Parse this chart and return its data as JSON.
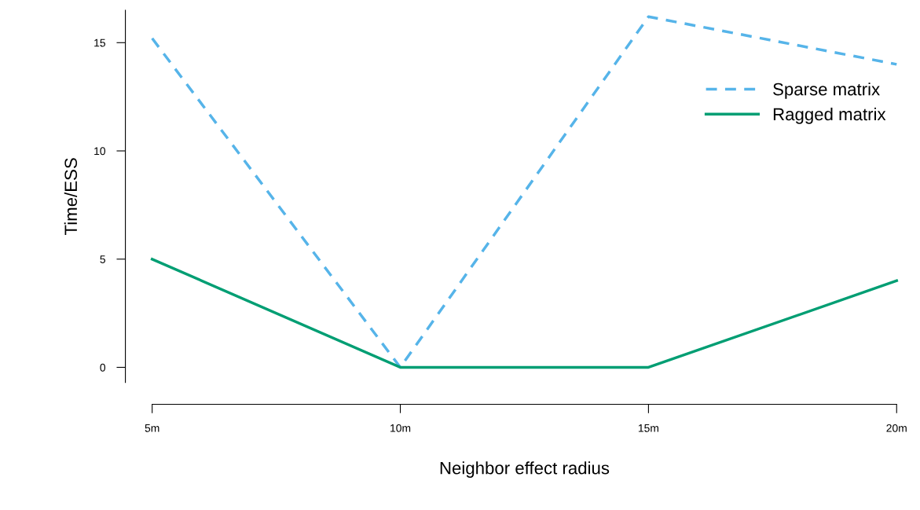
{
  "chart_data": {
    "type": "line",
    "xlabel": "Neighbor effect radius",
    "ylabel": "Time/ESS",
    "categories": [
      "5m",
      "10m",
      "15m",
      "20m"
    ],
    "series": [
      {
        "name": "Sparse matrix",
        "color": "#56b4e9",
        "values": [
          15.2,
          0,
          16.2,
          14.0
        ],
        "line_style": "dashed"
      },
      {
        "name": "Ragged matrix",
        "color": "#009e73",
        "values": [
          5,
          0,
          0,
          4
        ],
        "line_style": "solid"
      }
    ],
    "ylim": [
      -0.7,
      16.5
    ],
    "yticks": [
      0,
      5,
      10,
      15
    ],
    "grid": false,
    "legend": "right",
    "marker": "none"
  }
}
